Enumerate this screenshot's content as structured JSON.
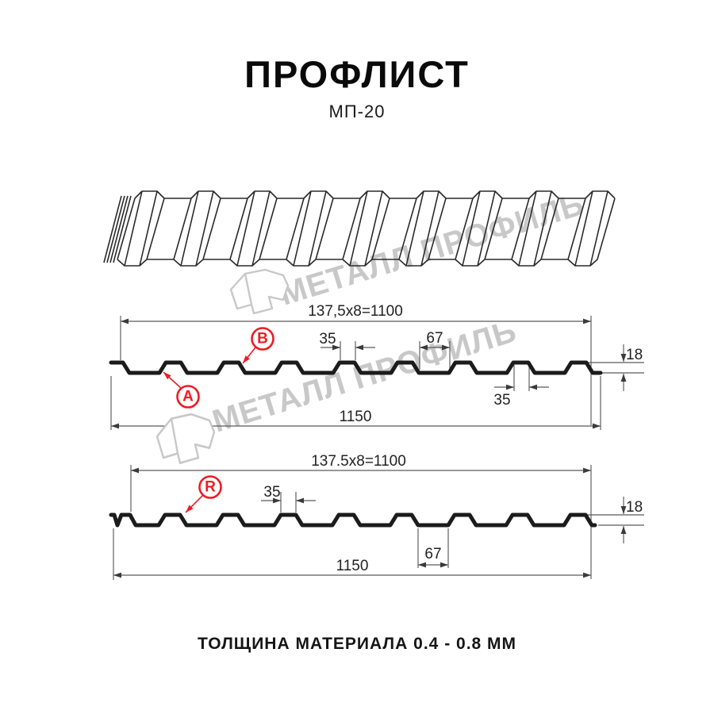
{
  "title": "ПРОФЛИСТ",
  "model": "МП-20",
  "footer": "ТОЛЩИНА МАТЕРИАЛА 0.4 - 0.8 ММ",
  "watermark": {
    "brand": "МЕТАЛЛ ПРОФИЛЬ",
    "color": "#c8c8c8"
  },
  "colors": {
    "background": "#ffffff",
    "profile_line": "#1b1b1b",
    "drawing_line": "#2a2a2a",
    "dimension_line": "#5a5a5a",
    "accent_red": "#ED1C24"
  },
  "section_a": {
    "span_top": "137,5x8=1100",
    "span_bottom": "1150",
    "rib_top_width": "35",
    "valley_width": "67",
    "rib_bottom_width": "35",
    "profile_height": "18",
    "label_a": "A",
    "label_b": "B"
  },
  "section_r": {
    "span_top": "137.5x8=1100",
    "span_bottom": "1150",
    "rib_top_width": "35",
    "valley_width": "67",
    "profile_height": "18",
    "label_r": "R"
  }
}
